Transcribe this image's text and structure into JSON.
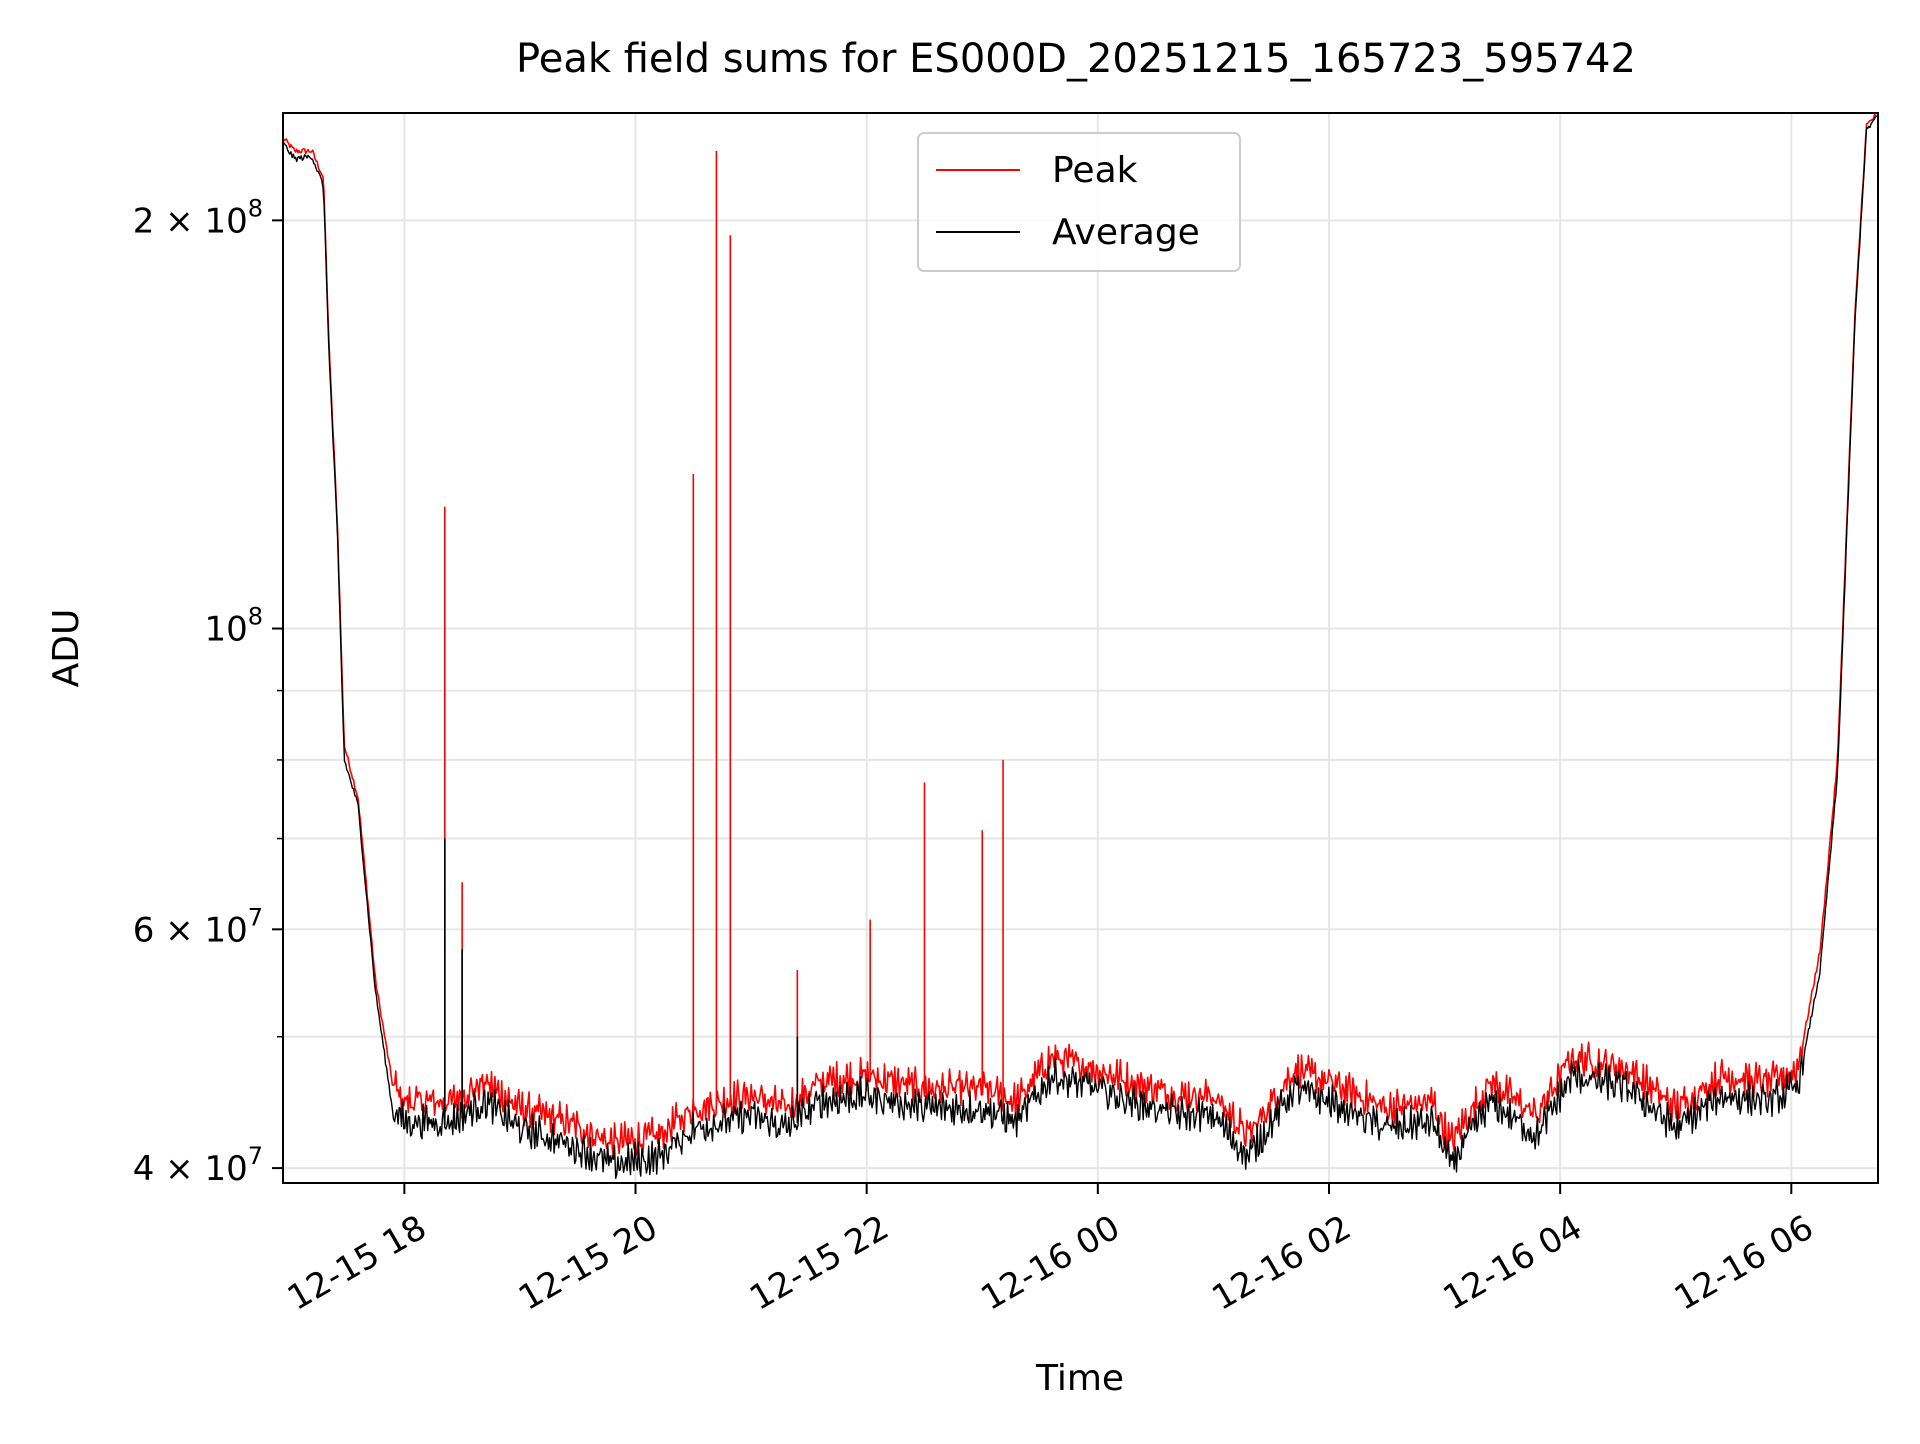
{
  "chart_data": {
    "type": "line",
    "title": "Peak field sums for ES000D_20251215_165723_595742",
    "xlabel": "Time",
    "ylabel": "ADU",
    "yscale": "log",
    "ylim": [
      39000000,
      240000000
    ],
    "xlim_hours": [
      16.95,
      30.75
    ],
    "x_unit": "hours since 2025-12-15 00:00",
    "grid": true,
    "legend": {
      "placement": "top-center",
      "entries": [
        {
          "label": "Peak",
          "color": "#ff0000"
        },
        {
          "label": "Average",
          "color": "#000000"
        }
      ]
    },
    "xticks": [
      {
        "value": 18,
        "label": "12-15 18"
      },
      {
        "value": 20,
        "label": "12-15 20"
      },
      {
        "value": 22,
        "label": "12-15 22"
      },
      {
        "value": 24,
        "label": "12-16 00"
      },
      {
        "value": 26,
        "label": "12-16 02"
      },
      {
        "value": 28,
        "label": "12-16 04"
      },
      {
        "value": 30,
        "label": "12-16 06"
      }
    ],
    "yticks": [
      {
        "value": 40000000,
        "base": "4 × 10",
        "exp": "7"
      },
      {
        "value": 60000000,
        "base": "6 × 10",
        "exp": "7"
      },
      {
        "value": 100000000,
        "base": "10",
        "exp": "8"
      },
      {
        "value": 200000000,
        "base": "2 × 10",
        "exp": "8"
      }
    ],
    "minor_yticks": [
      50000000,
      70000000,
      80000000,
      90000000
    ],
    "series": [
      {
        "name": "Peak",
        "color": "#ff0000",
        "base": [
          [
            16.95,
            230000000
          ],
          [
            17.05,
            225000000
          ],
          [
            17.2,
            225000000
          ],
          [
            17.3,
            215000000
          ],
          [
            17.35,
            160000000
          ],
          [
            17.42,
            120000000
          ],
          [
            17.48,
            82000000
          ],
          [
            17.6,
            75000000
          ],
          [
            17.75,
            55000000
          ],
          [
            17.9,
            46000000
          ],
          [
            18.0,
            44500000
          ],
          [
            18.4,
            44500000
          ],
          [
            18.7,
            46000000
          ],
          [
            19.0,
            44000000
          ],
          [
            19.4,
            43000000
          ],
          [
            19.8,
            41500000
          ],
          [
            20.2,
            42000000
          ],
          [
            20.5,
            44000000
          ],
          [
            21.0,
            45000000
          ],
          [
            21.3,
            44000000
          ],
          [
            21.6,
            46000000
          ],
          [
            22.0,
            46500000
          ],
          [
            22.5,
            45500000
          ],
          [
            23.0,
            45500000
          ],
          [
            23.3,
            44500000
          ],
          [
            23.6,
            48000000
          ],
          [
            24.0,
            47000000
          ],
          [
            24.3,
            46000000
          ],
          [
            24.7,
            45000000
          ],
          [
            25.0,
            45000000
          ],
          [
            25.3,
            42000000
          ],
          [
            25.7,
            47000000
          ],
          [
            26.0,
            46000000
          ],
          [
            26.5,
            44000000
          ],
          [
            26.9,
            44500000
          ],
          [
            27.05,
            41500000
          ],
          [
            27.4,
            46000000
          ],
          [
            27.8,
            43500000
          ],
          [
            28.1,
            48000000
          ],
          [
            28.6,
            47000000
          ],
          [
            29.0,
            44000000
          ],
          [
            29.4,
            46500000
          ],
          [
            29.8,
            46000000
          ],
          [
            30.05,
            47000000
          ],
          [
            30.25,
            58000000
          ],
          [
            30.4,
            80000000
          ],
          [
            30.55,
            170000000
          ],
          [
            30.65,
            235000000
          ],
          [
            30.75,
            240000000
          ]
        ],
        "spikes": [
          [
            18.35,
            123000000
          ],
          [
            18.5,
            65000000
          ],
          [
            20.5,
            130000000
          ],
          [
            20.7,
            225000000
          ],
          [
            20.82,
            195000000
          ],
          [
            21.4,
            56000000
          ],
          [
            22.03,
            61000000
          ],
          [
            22.5,
            77000000
          ],
          [
            23.0,
            71000000
          ],
          [
            23.18,
            80000000
          ]
        ]
      },
      {
        "name": "Average",
        "color": "#000000",
        "base": [
          [
            16.95,
            228000000
          ],
          [
            17.05,
            222000000
          ],
          [
            17.2,
            223000000
          ],
          [
            17.3,
            212000000
          ],
          [
            17.35,
            158000000
          ],
          [
            17.42,
            118000000
          ],
          [
            17.48,
            80000000
          ],
          [
            17.6,
            74000000
          ],
          [
            17.75,
            54000000
          ],
          [
            17.9,
            44000000
          ],
          [
            18.0,
            43000000
          ],
          [
            18.4,
            43000000
          ],
          [
            18.7,
            44500000
          ],
          [
            19.0,
            42500000
          ],
          [
            19.4,
            41500000
          ],
          [
            19.8,
            40000000
          ],
          [
            20.2,
            40500000
          ],
          [
            20.5,
            42500000
          ],
          [
            21.0,
            43500000
          ],
          [
            21.3,
            42500000
          ],
          [
            21.6,
            44500000
          ],
          [
            22.0,
            45000000
          ],
          [
            22.5,
            44000000
          ],
          [
            23.0,
            44000000
          ],
          [
            23.3,
            43000000
          ],
          [
            23.6,
            46500000
          ],
          [
            24.0,
            45500000
          ],
          [
            24.3,
            44500000
          ],
          [
            24.7,
            43500000
          ],
          [
            25.0,
            43500000
          ],
          [
            25.3,
            40500000
          ],
          [
            25.7,
            45500000
          ],
          [
            26.0,
            44500000
          ],
          [
            26.5,
            42500000
          ],
          [
            26.9,
            43000000
          ],
          [
            27.05,
            40000000
          ],
          [
            27.4,
            44500000
          ],
          [
            27.8,
            42000000
          ],
          [
            28.1,
            46500000
          ],
          [
            28.6,
            45500000
          ],
          [
            29.0,
            42500000
          ],
          [
            29.4,
            45000000
          ],
          [
            29.8,
            44500000
          ],
          [
            30.05,
            45500000
          ],
          [
            30.25,
            56000000
          ],
          [
            30.4,
            78000000
          ],
          [
            30.55,
            168000000
          ],
          [
            30.65,
            233000000
          ],
          [
            30.75,
            239000000
          ]
        ],
        "spikes": [
          [
            18.35,
            70000000
          ],
          [
            18.5,
            58000000
          ],
          [
            21.4,
            50000000
          ]
        ]
      }
    ]
  }
}
